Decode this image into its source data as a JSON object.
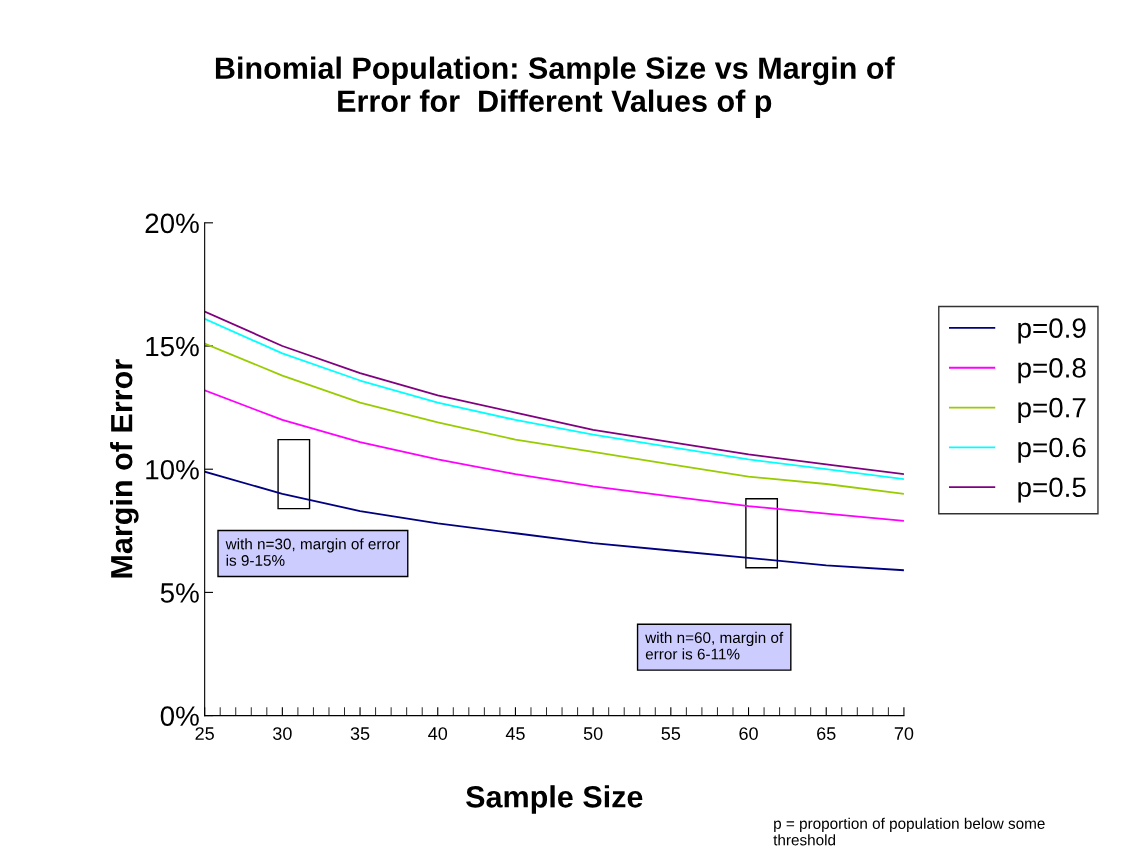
{
  "chart_data": {
    "type": "line",
    "title": "Binomial Population: Sample Size vs Margin of\nError for  Different Values of p",
    "xlabel": "Sample Size",
    "ylabel": "Margin of Error",
    "x": [
      25,
      30,
      35,
      40,
      45,
      50,
      55,
      60,
      65,
      70
    ],
    "series": [
      {
        "name": "p=0.9",
        "color": "#000080",
        "values": [
          9.9,
          9.0,
          8.3,
          7.8,
          7.4,
          7.0,
          6.7,
          6.4,
          6.1,
          5.9
        ]
      },
      {
        "name": "p=0.8",
        "color": "#ff00ff",
        "values": [
          13.2,
          12.0,
          11.1,
          10.4,
          9.8,
          9.3,
          8.9,
          8.5,
          8.2,
          7.9
        ]
      },
      {
        "name": "p=0.7",
        "color": "#99cc00",
        "values": [
          15.1,
          13.8,
          12.7,
          11.9,
          11.2,
          10.7,
          10.2,
          9.7,
          9.4,
          9.0
        ]
      },
      {
        "name": "p=0.6",
        "color": "#00ffff",
        "values": [
          16.1,
          14.7,
          13.6,
          12.7,
          12.0,
          11.4,
          10.9,
          10.4,
          10.0,
          9.6
        ]
      },
      {
        "name": "p=0.5",
        "color": "#800080",
        "values": [
          16.4,
          15.0,
          13.9,
          13.0,
          12.3,
          11.6,
          11.1,
          10.6,
          10.2,
          9.8
        ]
      }
    ],
    "xlim": [
      25,
      70
    ],
    "xticks": [
      25,
      30,
      35,
      40,
      45,
      50,
      55,
      60,
      65,
      70
    ],
    "ylim": [
      0,
      20
    ],
    "yticks": [
      {
        "value": 0,
        "label": "0%"
      },
      {
        "value": 5,
        "label": "5%"
      },
      {
        "value": 10,
        "label": "10%"
      },
      {
        "value": 15,
        "label": "15%"
      },
      {
        "value": 20,
        "label": "20%"
      }
    ],
    "annotations": [
      "with n=30, margin of error\nis 9-15%",
      "with n=60, margin of\nerror is 6-11%",
      "p = proportion of population below some\nthreshold"
    ],
    "legend": "right",
    "grid": false,
    "marker": "none",
    "line_style": "solid"
  }
}
